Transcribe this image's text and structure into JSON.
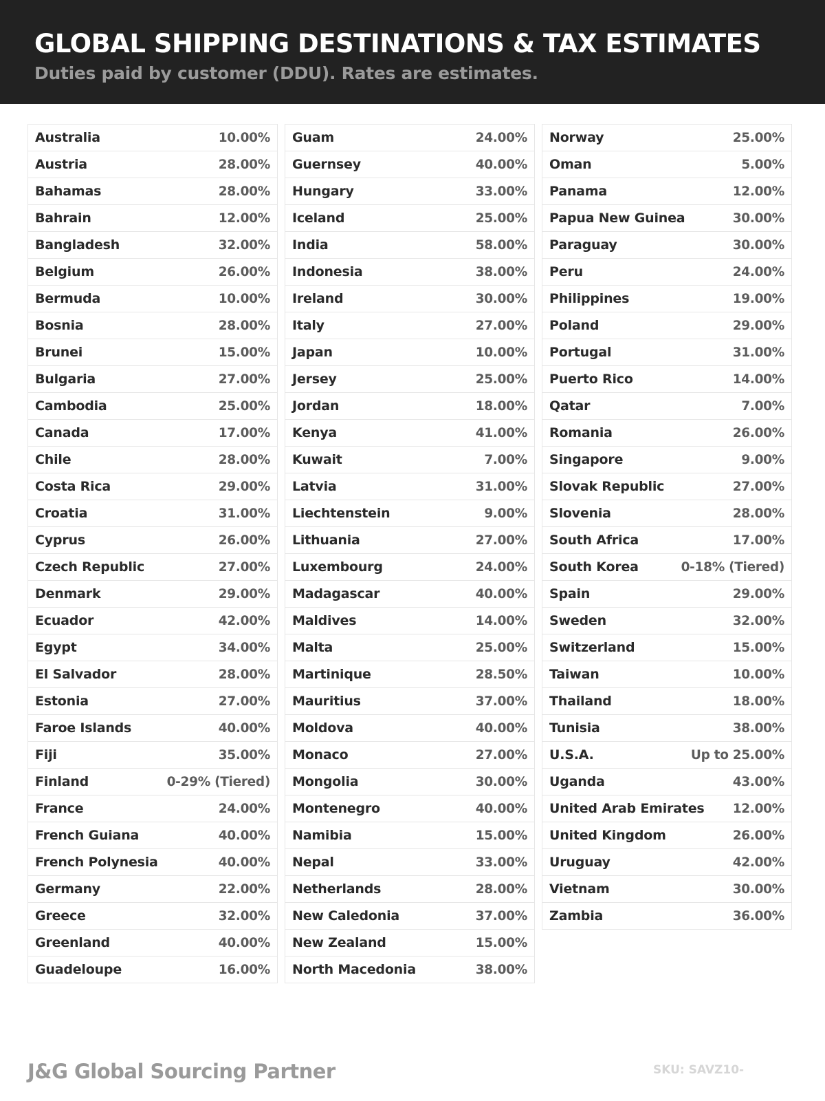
{
  "header": {
    "title": "GLOBAL SHIPPING DESTINATIONS & TAX ESTIMATES",
    "subtitle": "Duties paid by customer (DDU). Rates are estimates."
  },
  "columns": [
    [
      {
        "country": "Australia",
        "rate": "10.00%"
      },
      {
        "country": "Austria",
        "rate": "28.00%"
      },
      {
        "country": "Bahamas",
        "rate": "28.00%"
      },
      {
        "country": "Bahrain",
        "rate": "12.00%"
      },
      {
        "country": "Bangladesh",
        "rate": "32.00%"
      },
      {
        "country": "Belgium",
        "rate": "26.00%"
      },
      {
        "country": "Bermuda",
        "rate": "10.00%"
      },
      {
        "country": "Bosnia",
        "rate": "28.00%"
      },
      {
        "country": "Brunei",
        "rate": "15.00%"
      },
      {
        "country": "Bulgaria",
        "rate": "27.00%"
      },
      {
        "country": "Cambodia",
        "rate": "25.00%"
      },
      {
        "country": "Canada",
        "rate": "17.00%"
      },
      {
        "country": "Chile",
        "rate": "28.00%"
      },
      {
        "country": "Costa Rica",
        "rate": "29.00%"
      },
      {
        "country": "Croatia",
        "rate": "31.00%"
      },
      {
        "country": "Cyprus",
        "rate": "26.00%"
      },
      {
        "country": "Czech Republic",
        "rate": "27.00%"
      },
      {
        "country": "Denmark",
        "rate": "29.00%"
      },
      {
        "country": "Ecuador",
        "rate": "42.00%"
      },
      {
        "country": "Egypt",
        "rate": "34.00%"
      },
      {
        "country": "El Salvador",
        "rate": "28.00%"
      },
      {
        "country": "Estonia",
        "rate": "27.00%"
      },
      {
        "country": "Faroe Islands",
        "rate": "40.00%"
      },
      {
        "country": "Fiji",
        "rate": "35.00%"
      },
      {
        "country": "Finland",
        "rate": "0-29% (Tiered)"
      },
      {
        "country": "France",
        "rate": "24.00%"
      },
      {
        "country": "French Guiana",
        "rate": "40.00%"
      },
      {
        "country": "French Polynesia",
        "rate": "40.00%"
      },
      {
        "country": "Germany",
        "rate": "22.00%"
      },
      {
        "country": "Greece",
        "rate": "32.00%"
      },
      {
        "country": "Greenland",
        "rate": "40.00%"
      },
      {
        "country": "Guadeloupe",
        "rate": "16.00%"
      }
    ],
    [
      {
        "country": "Guam",
        "rate": "24.00%"
      },
      {
        "country": "Guernsey",
        "rate": "40.00%"
      },
      {
        "country": "Hungary",
        "rate": "33.00%"
      },
      {
        "country": "Iceland",
        "rate": "25.00%"
      },
      {
        "country": "India",
        "rate": "58.00%"
      },
      {
        "country": "Indonesia",
        "rate": "38.00%"
      },
      {
        "country": "Ireland",
        "rate": "30.00%"
      },
      {
        "country": "Italy",
        "rate": "27.00%"
      },
      {
        "country": "Japan",
        "rate": "10.00%"
      },
      {
        "country": "Jersey",
        "rate": "25.00%"
      },
      {
        "country": "Jordan",
        "rate": "18.00%"
      },
      {
        "country": "Kenya",
        "rate": "41.00%"
      },
      {
        "country": "Kuwait",
        "rate": "7.00%"
      },
      {
        "country": "Latvia",
        "rate": "31.00%"
      },
      {
        "country": "Liechtenstein",
        "rate": "9.00%"
      },
      {
        "country": "Lithuania",
        "rate": "27.00%"
      },
      {
        "country": "Luxembourg",
        "rate": "24.00%"
      },
      {
        "country": "Madagascar",
        "rate": "40.00%"
      },
      {
        "country": "Maldives",
        "rate": "14.00%"
      },
      {
        "country": "Malta",
        "rate": "25.00%"
      },
      {
        "country": "Martinique",
        "rate": "28.50%"
      },
      {
        "country": "Mauritius",
        "rate": "37.00%"
      },
      {
        "country": "Moldova",
        "rate": "40.00%"
      },
      {
        "country": "Monaco",
        "rate": "27.00%"
      },
      {
        "country": "Mongolia",
        "rate": "30.00%"
      },
      {
        "country": "Montenegro",
        "rate": "40.00%"
      },
      {
        "country": "Namibia",
        "rate": "15.00%"
      },
      {
        "country": "Nepal",
        "rate": "33.00%"
      },
      {
        "country": "Netherlands",
        "rate": "28.00%"
      },
      {
        "country": "New Caledonia",
        "rate": "37.00%"
      },
      {
        "country": "New Zealand",
        "rate": "15.00%"
      },
      {
        "country": "North Macedonia",
        "rate": "38.00%"
      }
    ],
    [
      {
        "country": "Norway",
        "rate": "25.00%"
      },
      {
        "country": "Oman",
        "rate": "5.00%"
      },
      {
        "country": "Panama",
        "rate": "12.00%"
      },
      {
        "country": "Papua New Guinea",
        "rate": "30.00%"
      },
      {
        "country": "Paraguay",
        "rate": "30.00%"
      },
      {
        "country": "Peru",
        "rate": "24.00%"
      },
      {
        "country": "Philippines",
        "rate": "19.00%"
      },
      {
        "country": "Poland",
        "rate": "29.00%"
      },
      {
        "country": "Portugal",
        "rate": "31.00%"
      },
      {
        "country": "Puerto Rico",
        "rate": "14.00%"
      },
      {
        "country": "Qatar",
        "rate": "7.00%"
      },
      {
        "country": "Romania",
        "rate": "26.00%"
      },
      {
        "country": "Singapore",
        "rate": "9.00%"
      },
      {
        "country": "Slovak Republic",
        "rate": "27.00%"
      },
      {
        "country": "Slovenia",
        "rate": "28.00%"
      },
      {
        "country": "South Africa",
        "rate": "17.00%"
      },
      {
        "country": "South Korea",
        "rate": "0-18% (Tiered)"
      },
      {
        "country": "Spain",
        "rate": "29.00%"
      },
      {
        "country": "Sweden",
        "rate": "32.00%"
      },
      {
        "country": "Switzerland",
        "rate": "15.00%"
      },
      {
        "country": "Taiwan",
        "rate": "10.00%"
      },
      {
        "country": "Thailand",
        "rate": "18.00%"
      },
      {
        "country": "Tunisia",
        "rate": "38.00%"
      },
      {
        "country": "U.S.A.",
        "rate": "Up to 25.00%"
      },
      {
        "country": "Uganda",
        "rate": "43.00%"
      },
      {
        "country": "United Arab Emirates",
        "rate": "12.00%"
      },
      {
        "country": "United Kingdom",
        "rate": "26.00%"
      },
      {
        "country": "Uruguay",
        "rate": "42.00%"
      },
      {
        "country": "Vietnam",
        "rate": "30.00%"
      },
      {
        "country": "Zambia",
        "rate": "36.00%"
      }
    ]
  ],
  "footer": {
    "brand": "J&G Global Sourcing Partner",
    "sku": "SKU: SAVZ10-"
  }
}
